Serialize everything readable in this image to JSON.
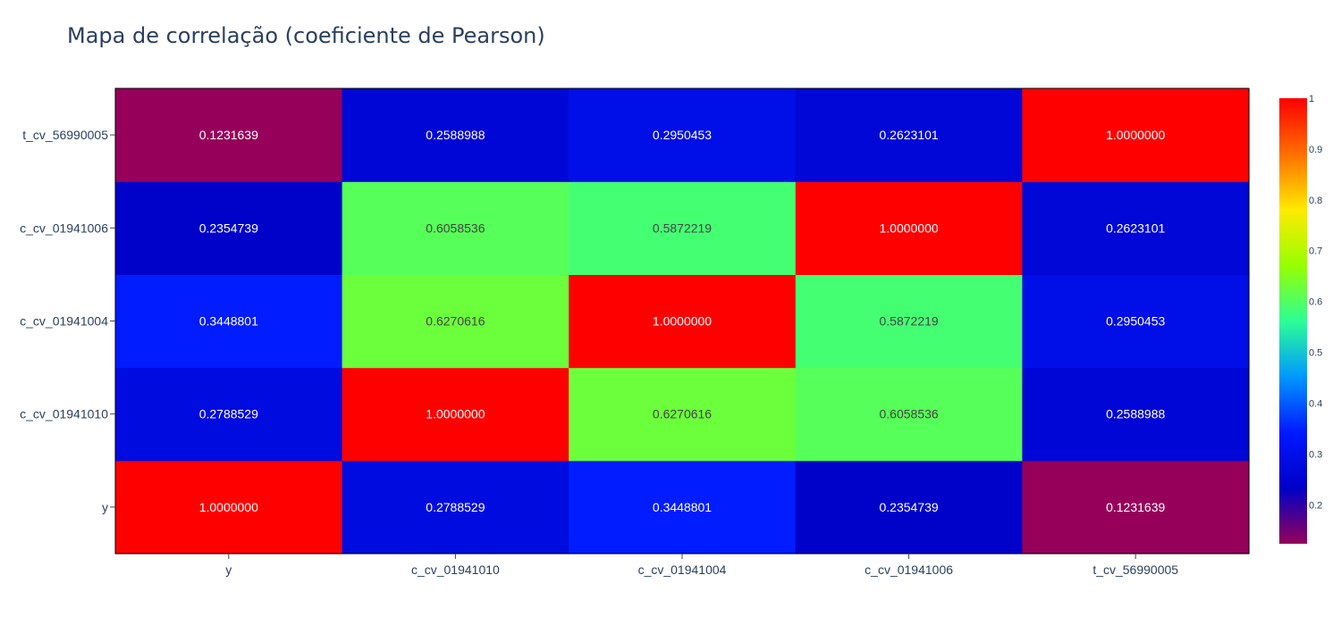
{
  "chart_data": {
    "type": "heatmap",
    "title": "Mapa de correlação (coeficiente de Pearson)",
    "x_categories": [
      "y",
      "c_cv_01941010",
      "c_cv_01941004",
      "c_cv_01941006",
      "t_cv_56990005"
    ],
    "y_categories": [
      "y",
      "c_cv_01941010",
      "c_cv_01941004",
      "c_cv_01941006",
      "t_cv_56990005"
    ],
    "z": [
      [
        1.0,
        0.2788529,
        0.3448801,
        0.2354739,
        0.1231639
      ],
      [
        0.2788529,
        1.0,
        0.6270616,
        0.6058536,
        0.2588988
      ],
      [
        0.3448801,
        0.6270616,
        1.0,
        0.5872219,
        0.2950453
      ],
      [
        0.2354739,
        0.6058536,
        0.5872219,
        1.0,
        0.2623101
      ],
      [
        0.1231639,
        0.2588988,
        0.2950453,
        0.2623101,
        1.0
      ]
    ],
    "text": [
      [
        "1.0000000",
        "0.2788529",
        "0.3448801",
        "0.2354739",
        "0.1231639"
      ],
      [
        "0.2788529",
        "1.0000000",
        "0.6270616",
        "0.6058536",
        "0.2588988"
      ],
      [
        "0.3448801",
        "0.6270616",
        "1.0000000",
        "0.5872219",
        "0.2950453"
      ],
      [
        "0.2354739",
        "0.6058536",
        "0.5872219",
        "1.0000000",
        "0.2623101"
      ],
      [
        "0.1231639",
        "0.2588988",
        "0.2950453",
        "0.2623101",
        "1.0000000"
      ]
    ],
    "zmin": 0.1231639,
    "zmax": 1.0,
    "colorscale": "Rainbow (purple → blue → green → yellow → red)",
    "colorbar_ticks": [
      "0.2",
      "0.3",
      "0.4",
      "0.5",
      "0.6",
      "0.7",
      "0.8",
      "0.9",
      "1"
    ],
    "colorbar_tick_values": [
      0.2,
      0.3,
      0.4,
      0.5,
      0.6,
      0.7,
      0.8,
      0.9,
      1.0
    ],
    "xlabel": "",
    "ylabel": "",
    "legend": "colorbar-right"
  }
}
